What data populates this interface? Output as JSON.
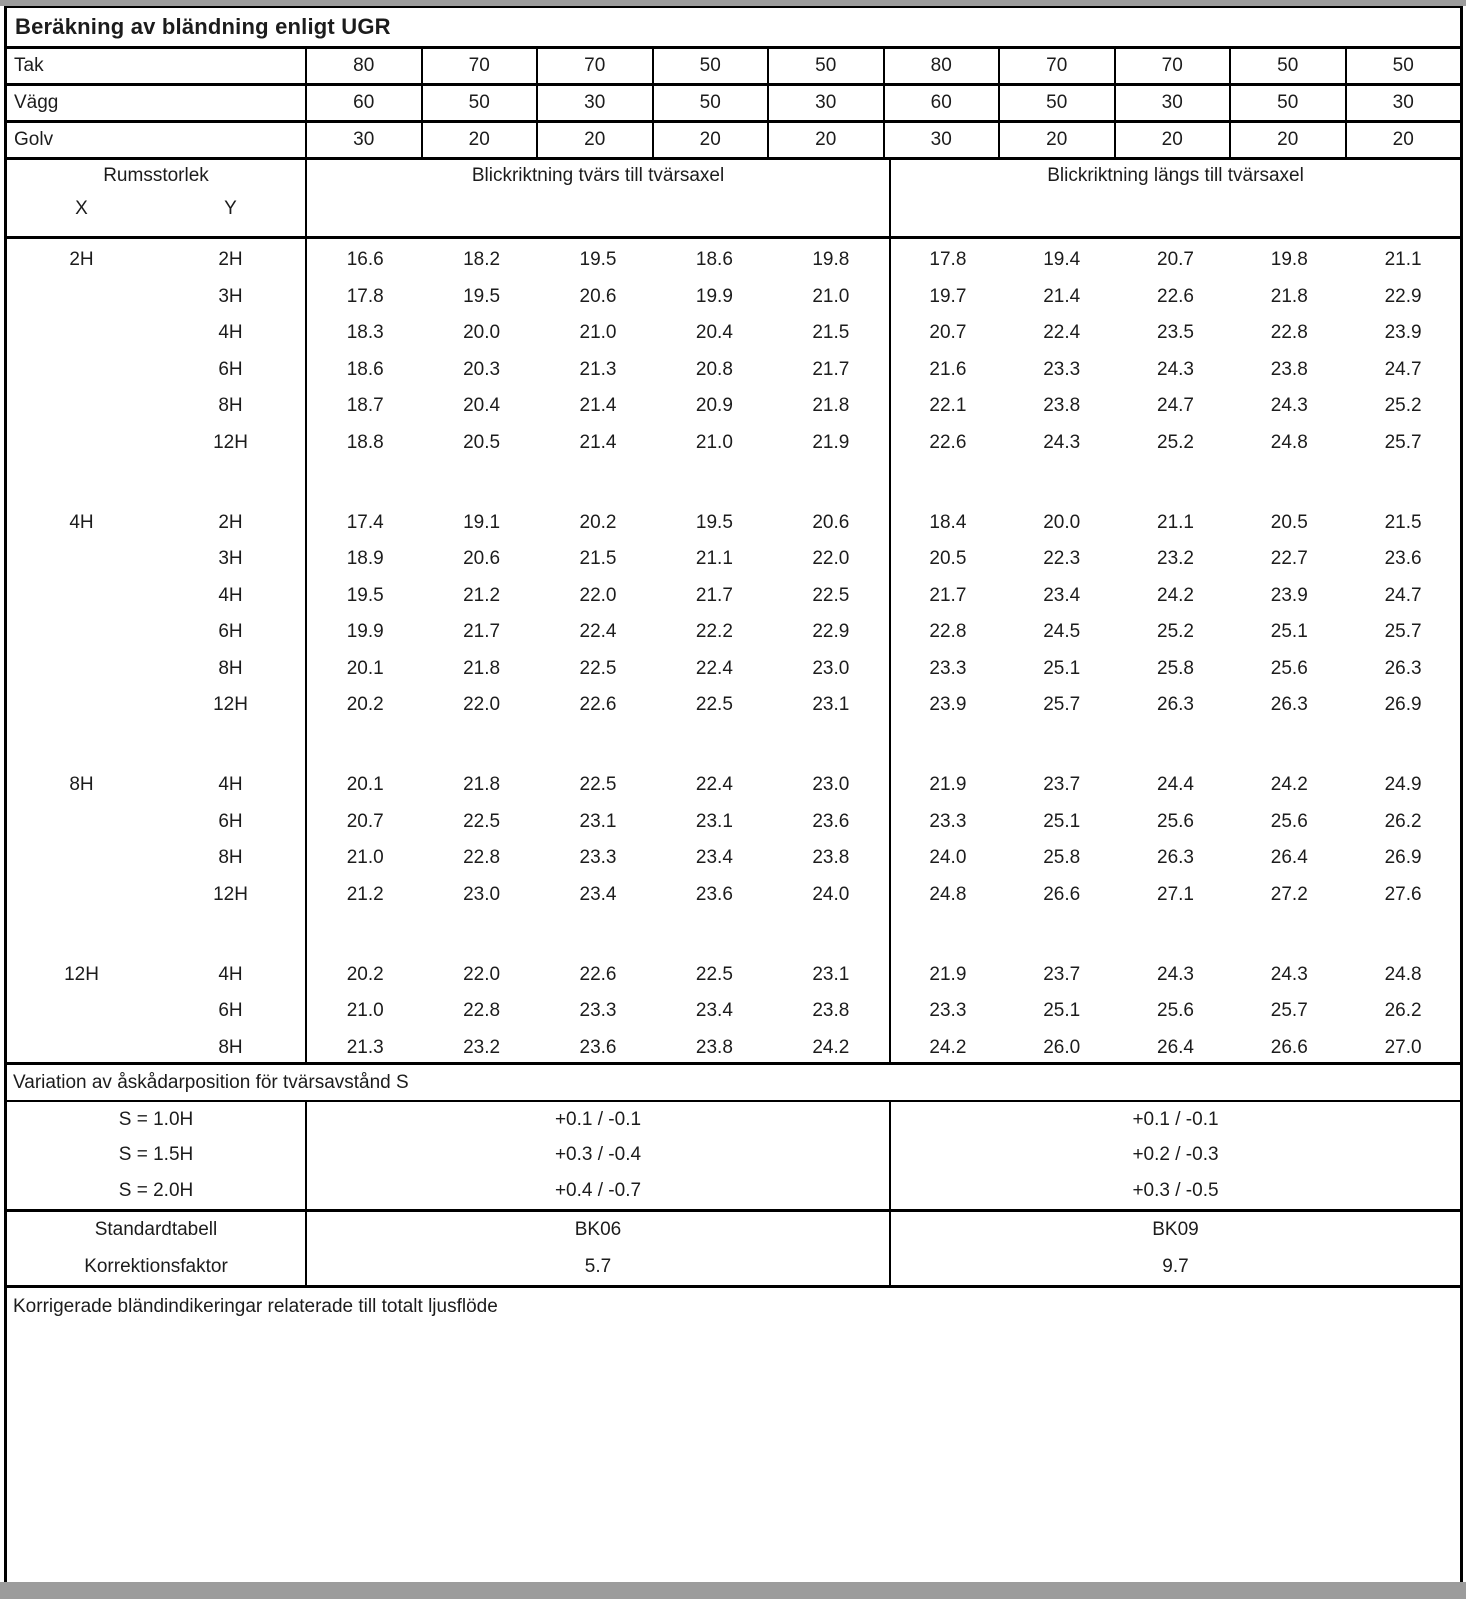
{
  "colors": {
    "chrome_gray": "#9c9c9c",
    "border": "#000000",
    "text": "#1c1c1c",
    "background": "#ffffff"
  },
  "title": "Beräkning av bländning enligt UGR",
  "reflectance_rows": [
    {
      "label": "Tak",
      "values": [
        "80",
        "70",
        "70",
        "50",
        "50",
        "80",
        "70",
        "70",
        "50",
        "50"
      ]
    },
    {
      "label": "Vägg",
      "values": [
        "60",
        "50",
        "30",
        "50",
        "30",
        "60",
        "50",
        "30",
        "50",
        "30"
      ]
    },
    {
      "label": "Golv",
      "values": [
        "30",
        "20",
        "20",
        "20",
        "20",
        "30",
        "20",
        "20",
        "20",
        "20"
      ]
    }
  ],
  "header": {
    "room_size_label": "Rumsstorlek",
    "x_label": "X",
    "y_label": "Y",
    "group1_label": "Blickriktning tvärs till tvärsaxel",
    "group2_label": "Blickriktning längs till tvärsaxel"
  },
  "ugr_groups": [
    {
      "x": "2H",
      "rows": [
        {
          "y": "2H",
          "tvars": [
            "16.6",
            "18.2",
            "19.5",
            "18.6",
            "19.8"
          ],
          "langs": [
            "17.8",
            "19.4",
            "20.7",
            "19.8",
            "21.1"
          ]
        },
        {
          "y": "3H",
          "tvars": [
            "17.8",
            "19.5",
            "20.6",
            "19.9",
            "21.0"
          ],
          "langs": [
            "19.7",
            "21.4",
            "22.6",
            "21.8",
            "22.9"
          ]
        },
        {
          "y": "4H",
          "tvars": [
            "18.3",
            "20.0",
            "21.0",
            "20.4",
            "21.5"
          ],
          "langs": [
            "20.7",
            "22.4",
            "23.5",
            "22.8",
            "23.9"
          ]
        },
        {
          "y": "6H",
          "tvars": [
            "18.6",
            "20.3",
            "21.3",
            "20.8",
            "21.7"
          ],
          "langs": [
            "21.6",
            "23.3",
            "24.3",
            "23.8",
            "24.7"
          ]
        },
        {
          "y": "8H",
          "tvars": [
            "18.7",
            "20.4",
            "21.4",
            "20.9",
            "21.8"
          ],
          "langs": [
            "22.1",
            "23.8",
            "24.7",
            "24.3",
            "25.2"
          ]
        },
        {
          "y": "12H",
          "tvars": [
            "18.8",
            "20.5",
            "21.4",
            "21.0",
            "21.9"
          ],
          "langs": [
            "22.6",
            "24.3",
            "25.2",
            "24.8",
            "25.7"
          ]
        }
      ]
    },
    {
      "x": "4H",
      "rows": [
        {
          "y": "2H",
          "tvars": [
            "17.4",
            "19.1",
            "20.2",
            "19.5",
            "20.6"
          ],
          "langs": [
            "18.4",
            "20.0",
            "21.1",
            "20.5",
            "21.5"
          ]
        },
        {
          "y": "3H",
          "tvars": [
            "18.9",
            "20.6",
            "21.5",
            "21.1",
            "22.0"
          ],
          "langs": [
            "20.5",
            "22.3",
            "23.2",
            "22.7",
            "23.6"
          ]
        },
        {
          "y": "4H",
          "tvars": [
            "19.5",
            "21.2",
            "22.0",
            "21.7",
            "22.5"
          ],
          "langs": [
            "21.7",
            "23.4",
            "24.2",
            "23.9",
            "24.7"
          ]
        },
        {
          "y": "6H",
          "tvars": [
            "19.9",
            "21.7",
            "22.4",
            "22.2",
            "22.9"
          ],
          "langs": [
            "22.8",
            "24.5",
            "25.2",
            "25.1",
            "25.7"
          ]
        },
        {
          "y": "8H",
          "tvars": [
            "20.1",
            "21.8",
            "22.5",
            "22.4",
            "23.0"
          ],
          "langs": [
            "23.3",
            "25.1",
            "25.8",
            "25.6",
            "26.3"
          ]
        },
        {
          "y": "12H",
          "tvars": [
            "20.2",
            "22.0",
            "22.6",
            "22.5",
            "23.1"
          ],
          "langs": [
            "23.9",
            "25.7",
            "26.3",
            "26.3",
            "26.9"
          ]
        }
      ]
    },
    {
      "x": "8H",
      "rows": [
        {
          "y": "4H",
          "tvars": [
            "20.1",
            "21.8",
            "22.5",
            "22.4",
            "23.0"
          ],
          "langs": [
            "21.9",
            "23.7",
            "24.4",
            "24.2",
            "24.9"
          ]
        },
        {
          "y": "6H",
          "tvars": [
            "20.7",
            "22.5",
            "23.1",
            "23.1",
            "23.6"
          ],
          "langs": [
            "23.3",
            "25.1",
            "25.6",
            "25.6",
            "26.2"
          ]
        },
        {
          "y": "8H",
          "tvars": [
            "21.0",
            "22.8",
            "23.3",
            "23.4",
            "23.8"
          ],
          "langs": [
            "24.0",
            "25.8",
            "26.3",
            "26.4",
            "26.9"
          ]
        },
        {
          "y": "12H",
          "tvars": [
            "21.2",
            "23.0",
            "23.4",
            "23.6",
            "24.0"
          ],
          "langs": [
            "24.8",
            "26.6",
            "27.1",
            "27.2",
            "27.6"
          ]
        }
      ]
    },
    {
      "x": "12H",
      "rows": [
        {
          "y": "4H",
          "tvars": [
            "20.2",
            "22.0",
            "22.6",
            "22.5",
            "23.1"
          ],
          "langs": [
            "21.9",
            "23.7",
            "24.3",
            "24.3",
            "24.8"
          ]
        },
        {
          "y": "6H",
          "tvars": [
            "21.0",
            "22.8",
            "23.3",
            "23.4",
            "23.8"
          ],
          "langs": [
            "23.3",
            "25.1",
            "25.6",
            "25.7",
            "26.2"
          ]
        },
        {
          "y": "8H",
          "tvars": [
            "21.3",
            "23.2",
            "23.6",
            "23.8",
            "24.2"
          ],
          "langs": [
            "24.2",
            "26.0",
            "26.4",
            "26.6",
            "27.0"
          ]
        }
      ]
    }
  ],
  "variation": {
    "title": "Variation av åskådarposition för tvärsavstånd S",
    "rows": [
      {
        "label": "S = 1.0H",
        "tvars": "+0.1 / -0.1",
        "langs": "+0.1 / -0.1"
      },
      {
        "label": "S = 1.5H",
        "tvars": "+0.3 / -0.4",
        "langs": "+0.2 / -0.3"
      },
      {
        "label": "S = 2.0H",
        "tvars": "+0.4 / -0.7",
        "langs": "+0.3 / -0.5"
      }
    ]
  },
  "summary": {
    "rows": [
      {
        "label": "Standardtabell",
        "tvars": "BK06",
        "langs": "BK09"
      },
      {
        "label": "Korrektionsfaktor",
        "tvars": "5.7",
        "langs": "9.7"
      }
    ]
  },
  "footer_title": "Korrigerade bländindikeringar relaterade till totalt ljusflöde"
}
